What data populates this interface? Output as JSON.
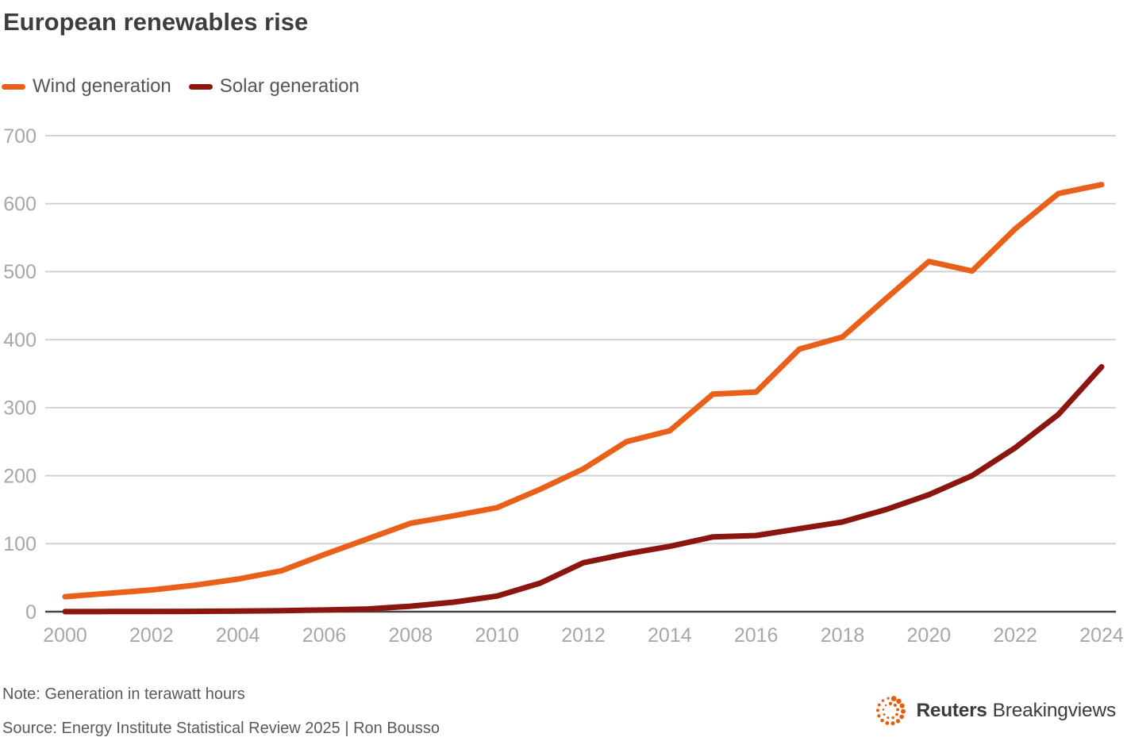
{
  "header": {
    "title": "European renewables rise"
  },
  "chart_data": {
    "type": "line",
    "title": "European renewables rise",
    "x": [
      2000,
      2001,
      2002,
      2003,
      2004,
      2005,
      2006,
      2007,
      2008,
      2009,
      2010,
      2011,
      2012,
      2013,
      2014,
      2015,
      2016,
      2017,
      2018,
      2019,
      2020,
      2021,
      2022,
      2023,
      2024
    ],
    "series": [
      {
        "name": "Wind generation",
        "color": "#E9601A",
        "values": [
          22,
          27,
          32,
          39,
          48,
          60,
          84,
          107,
          130,
          141,
          153,
          180,
          210,
          250,
          266,
          320,
          323,
          386,
          404,
          460,
          515,
          501,
          563,
          615,
          628
        ]
      },
      {
        "name": "Solar generation",
        "color": "#8B150F",
        "values": [
          0.1,
          0.2,
          0.3,
          0.5,
          0.8,
          1.5,
          2.5,
          4,
          8,
          14,
          23,
          42,
          72,
          85,
          96,
          110,
          112,
          122,
          132,
          150,
          172,
          200,
          241,
          290,
          360
        ]
      }
    ],
    "ylim": [
      0,
      700
    ],
    "yticks": [
      0,
      100,
      200,
      300,
      400,
      500,
      600,
      700
    ],
    "xticks": [
      2000,
      2002,
      2004,
      2006,
      2008,
      2010,
      2012,
      2014,
      2016,
      2018,
      2020,
      2022,
      2024
    ],
    "grid": true,
    "grid_color": "#D2D2D2",
    "axis_color": "#454545",
    "tick_color": "#A7A7A7",
    "legend_position": "top-left",
    "unit": "terawatt hours"
  },
  "footer": {
    "note": "Note: Generation in terawatt hours",
    "source": "Source: Energy Institute Statistical Review 2025 | Ron Bousso",
    "logo": {
      "brand": "Reuters",
      "suffix": "Breakingviews",
      "dot_color": "#E85C0D",
      "text_color": "#3B3B3B"
    }
  }
}
